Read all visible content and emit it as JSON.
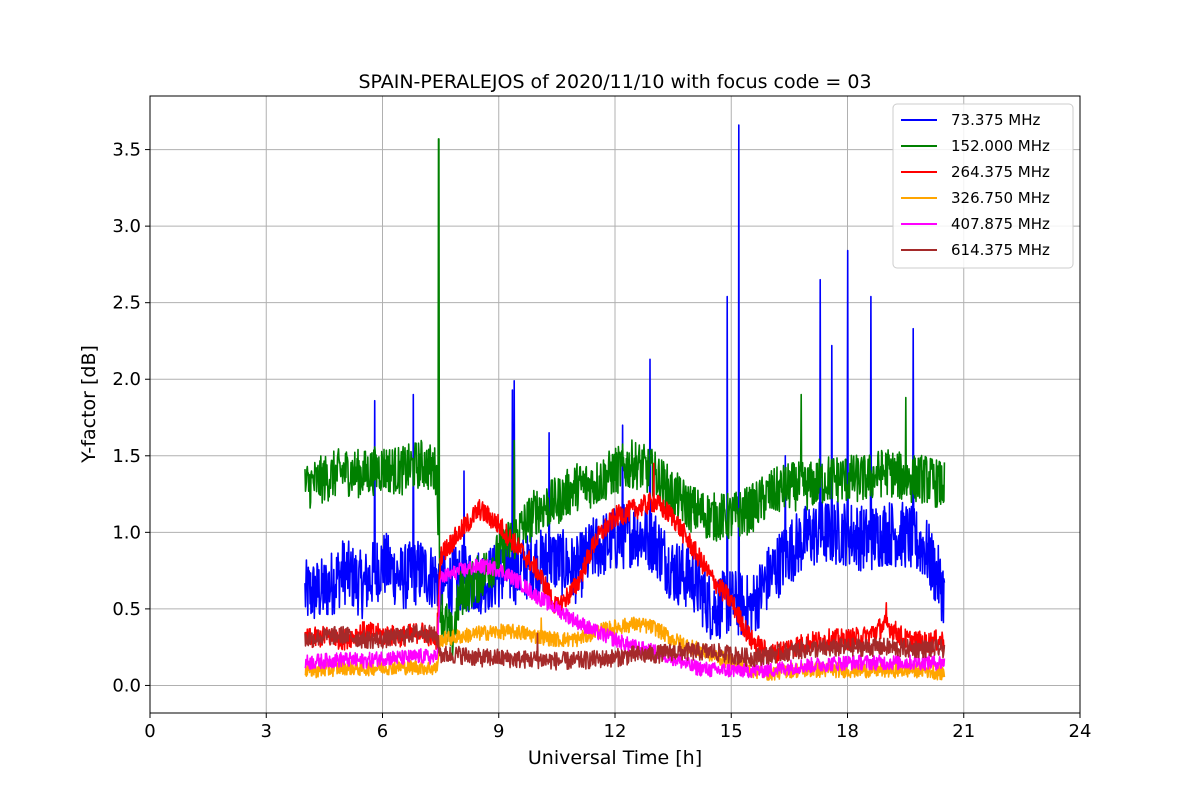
{
  "chart_data": {
    "type": "line",
    "title": "SPAIN-PERALEJOS of 2020/11/10 with focus code = 03",
    "xlabel": "Universal Time [h]",
    "ylabel": "Y-factor [dB]",
    "xlim": [
      0,
      24
    ],
    "ylim": [
      -0.18,
      3.85
    ],
    "xticks": [
      "0",
      "3",
      "6",
      "9",
      "12",
      "15",
      "18",
      "21",
      "24"
    ],
    "yticks": [
      "0.0",
      "0.5",
      "1.0",
      "1.5",
      "2.0",
      "2.5",
      "3.0",
      "3.5"
    ],
    "grid": true,
    "legend_position": "top-right",
    "series": [
      {
        "name": " 73.375 MHz",
        "color": "#0000ff",
        "x": [
          4.0,
          4.5,
          5.0,
          5.5,
          6.0,
          6.5,
          7.0,
          7.4,
          7.5,
          8.0,
          8.5,
          9.0,
          9.5,
          10.0,
          10.5,
          11.0,
          11.5,
          12.0,
          12.5,
          13.0,
          13.5,
          14.0,
          14.5,
          15.0,
          15.5,
          16.0,
          16.5,
          17.0,
          17.5,
          18.0,
          18.5,
          19.0,
          19.5,
          20.0,
          20.5
        ],
        "y": [
          0.6,
          0.62,
          0.75,
          0.65,
          0.8,
          0.7,
          0.75,
          0.7,
          0.65,
          0.7,
          0.68,
          0.72,
          0.75,
          0.8,
          0.82,
          0.75,
          0.9,
          0.95,
          1.0,
          0.95,
          0.75,
          0.7,
          0.5,
          0.55,
          0.5,
          0.72,
          0.88,
          0.98,
          1.0,
          1.0,
          0.95,
          1.0,
          0.98,
          0.9,
          0.6
        ],
        "spikes": [
          [
            5.8,
            1.86
          ],
          [
            6.8,
            1.9
          ],
          [
            8.1,
            1.4
          ],
          [
            9.35,
            1.93
          ],
          [
            9.4,
            1.99
          ],
          [
            10.3,
            1.65
          ],
          [
            12.2,
            1.7
          ],
          [
            12.9,
            2.13
          ],
          [
            14.9,
            2.54
          ],
          [
            15.2,
            3.66
          ],
          [
            16.4,
            1.5
          ],
          [
            17.3,
            2.65
          ],
          [
            17.6,
            2.22
          ],
          [
            18.0,
            2.84
          ],
          [
            18.6,
            2.54
          ],
          [
            19.7,
            2.33
          ]
        ]
      },
      {
        "name": "152.000 MHz",
        "color": "#008000",
        "x": [
          4.0,
          4.5,
          5.0,
          5.5,
          6.0,
          6.5,
          7.0,
          7.4,
          7.5,
          7.8,
          8.0,
          8.5,
          9.0,
          9.5,
          10.0,
          10.5,
          11.0,
          11.5,
          12.0,
          12.5,
          13.0,
          13.5,
          14.0,
          14.5,
          15.0,
          15.5,
          16.0,
          16.5,
          17.0,
          17.5,
          18.0,
          18.5,
          19.0,
          19.5,
          20.0,
          20.5
        ],
        "y": [
          1.3,
          1.35,
          1.4,
          1.38,
          1.42,
          1.4,
          1.45,
          1.4,
          0.5,
          0.3,
          0.6,
          0.7,
          0.85,
          1.0,
          1.15,
          1.2,
          1.3,
          1.32,
          1.4,
          1.45,
          1.38,
          1.25,
          1.15,
          1.1,
          1.1,
          1.15,
          1.25,
          1.3,
          1.3,
          1.35,
          1.35,
          1.35,
          1.4,
          1.35,
          1.35,
          1.3
        ],
        "spikes": [
          [
            7.45,
            3.57
          ],
          [
            9.4,
            1.6
          ],
          [
            16.8,
            1.9
          ],
          [
            19.5,
            1.88
          ]
        ]
      },
      {
        "name": "264.375 MHz",
        "color": "#ff0000",
        "x": [
          4.0,
          4.5,
          5.0,
          5.5,
          6.0,
          6.5,
          7.0,
          7.4,
          7.5,
          8.0,
          8.5,
          9.0,
          9.5,
          10.0,
          10.5,
          11.0,
          11.5,
          12.0,
          12.5,
          13.0,
          13.5,
          14.0,
          14.5,
          15.0,
          15.5,
          16.0,
          16.5,
          17.0,
          17.5,
          18.0,
          18.5,
          19.0,
          19.5,
          20.0,
          20.5
        ],
        "y": [
          0.3,
          0.32,
          0.3,
          0.35,
          0.33,
          0.32,
          0.35,
          0.3,
          0.85,
          1.0,
          1.15,
          1.05,
          0.9,
          0.75,
          0.5,
          0.65,
          0.95,
          1.1,
          1.15,
          1.2,
          1.1,
          0.9,
          0.7,
          0.55,
          0.3,
          0.2,
          0.25,
          0.28,
          0.3,
          0.3,
          0.32,
          0.4,
          0.3,
          0.28,
          0.3
        ],
        "spikes": [
          [
            13.0,
            1.45
          ],
          [
            19.0,
            0.54
          ]
        ]
      },
      {
        "name": "326.750 MHz",
        "color": "#ffa500",
        "x": [
          4.0,
          4.5,
          5.0,
          5.5,
          6.0,
          6.5,
          7.0,
          7.4,
          7.5,
          8.0,
          8.5,
          9.0,
          9.5,
          10.0,
          10.5,
          11.0,
          11.5,
          12.0,
          12.5,
          13.0,
          13.5,
          14.0,
          14.5,
          15.0,
          15.5,
          16.0,
          16.5,
          17.0,
          17.5,
          18.0,
          18.5,
          19.0,
          19.5,
          20.0,
          20.5
        ],
        "y": [
          0.1,
          0.1,
          0.12,
          0.11,
          0.12,
          0.12,
          0.12,
          0.11,
          0.3,
          0.32,
          0.34,
          0.35,
          0.35,
          0.32,
          0.3,
          0.3,
          0.35,
          0.38,
          0.4,
          0.38,
          0.3,
          0.25,
          0.2,
          0.15,
          0.1,
          0.08,
          0.1,
          0.1,
          0.1,
          0.1,
          0.1,
          0.1,
          0.1,
          0.1,
          0.08
        ],
        "spikes": [
          [
            10.1,
            0.44
          ]
        ]
      },
      {
        "name": "407.875 MHz",
        "color": "#ff00ff",
        "x": [
          4.0,
          4.5,
          5.0,
          5.5,
          6.0,
          6.5,
          7.0,
          7.4,
          7.5,
          8.0,
          8.5,
          9.0,
          9.5,
          10.0,
          10.5,
          11.0,
          11.5,
          12.0,
          12.5,
          13.0,
          13.5,
          14.0,
          14.5,
          15.0,
          15.5,
          16.0,
          16.5,
          17.0,
          17.5,
          18.0,
          18.5,
          19.0,
          19.5,
          20.0,
          20.5
        ],
        "y": [
          0.15,
          0.16,
          0.17,
          0.16,
          0.18,
          0.18,
          0.19,
          0.18,
          0.7,
          0.75,
          0.78,
          0.76,
          0.68,
          0.58,
          0.5,
          0.42,
          0.35,
          0.3,
          0.25,
          0.22,
          0.18,
          0.12,
          0.1,
          0.1,
          0.1,
          0.1,
          0.12,
          0.13,
          0.14,
          0.15,
          0.15,
          0.15,
          0.15,
          0.15,
          0.15
        ],
        "spikes": []
      },
      {
        "name": "614.375 MHz",
        "color": "#a52a2a",
        "x": [
          4.0,
          4.5,
          5.0,
          5.5,
          6.0,
          6.5,
          7.0,
          7.4,
          7.5,
          8.0,
          8.5,
          9.0,
          9.5,
          10.0,
          10.5,
          11.0,
          11.5,
          12.0,
          12.5,
          13.0,
          13.5,
          14.0,
          14.5,
          15.0,
          15.5,
          16.0,
          16.5,
          17.0,
          17.5,
          18.0,
          18.5,
          19.0,
          19.5,
          20.0,
          20.5
        ],
        "y": [
          0.3,
          0.32,
          0.33,
          0.3,
          0.3,
          0.32,
          0.35,
          0.32,
          0.2,
          0.2,
          0.18,
          0.18,
          0.17,
          0.17,
          0.16,
          0.16,
          0.17,
          0.18,
          0.2,
          0.2,
          0.22,
          0.22,
          0.22,
          0.2,
          0.18,
          0.2,
          0.22,
          0.24,
          0.24,
          0.25,
          0.25,
          0.25,
          0.24,
          0.24,
          0.24
        ],
        "spikes": [
          [
            10.0,
            0.34
          ]
        ]
      }
    ]
  }
}
